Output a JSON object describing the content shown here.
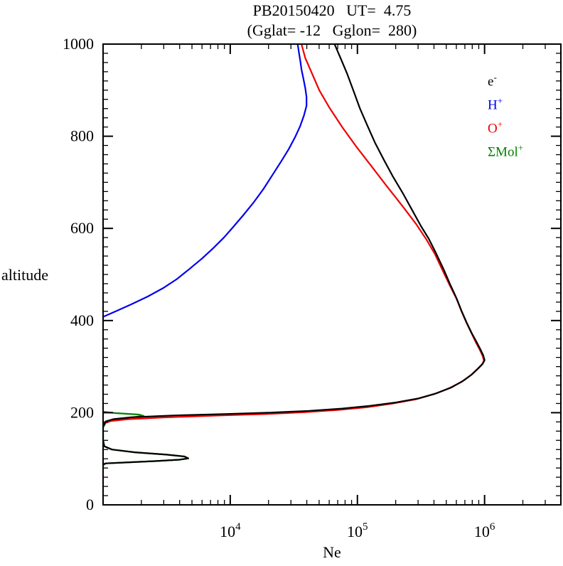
{
  "header": {
    "title": "PB20150420   UT=  4.75",
    "subtitle": "(Gglat= -12   Gglon=  280)"
  },
  "axes": {
    "x": {
      "label": "Ne",
      "scale": "log10",
      "log_min": 3.0,
      "log_max": 6.6,
      "major_ticks": [
        {
          "exp": "4"
        },
        {
          "exp": "5"
        },
        {
          "exp": "6"
        }
      ],
      "tick_label_base": "10"
    },
    "y": {
      "label": "altitude",
      "min": 0,
      "max": 1000,
      "minor_step": 20,
      "major_ticks": [
        {
          "value": 0,
          "label": "0"
        },
        {
          "value": 200,
          "label": "200"
        },
        {
          "value": 400,
          "label": "400"
        },
        {
          "value": 600,
          "label": "600"
        },
        {
          "value": 800,
          "label": "800"
        },
        {
          "value": 1000,
          "label": "1000"
        }
      ]
    }
  },
  "legend": {
    "items": [
      {
        "base": "e",
        "sup": "-",
        "color": "#000000",
        "series": "e-"
      },
      {
        "base": "H",
        "sup": "+",
        "color": "#0000ee",
        "series": "H+"
      },
      {
        "base": "O",
        "sup": "+",
        "color": "#ee0000",
        "series": "O+"
      },
      {
        "base": "ΣMol",
        "sup": "+",
        "color": "#008000",
        "series": "SigmaMol+"
      }
    ]
  },
  "chart_data": {
    "type": "line",
    "title": "PB20150420 UT= 4.75 (Gglat= -12 Gglon= 280)",
    "xlabel": "Ne",
    "ylabel": "altitude",
    "x_scale": "log10",
    "x_range_log10": [
      3.0,
      6.6
    ],
    "y_range": [
      0,
      1000
    ],
    "grid": false,
    "legend_position": "top-right-inside",
    "point_format": "[log10_Ne_per_cm3, altitude_km]",
    "series": [
      {
        "name": "SigmaMol+",
        "color": "#008000",
        "points": [
          [
            3.0,
            86
          ],
          [
            3.02,
            90
          ],
          [
            3.18,
            92
          ],
          [
            3.42,
            95
          ],
          [
            3.6,
            98
          ],
          [
            3.67,
            101
          ],
          [
            3.64,
            105
          ],
          [
            3.5,
            109
          ],
          [
            3.25,
            114
          ],
          [
            3.07,
            120
          ],
          [
            3.01,
            127
          ],
          [
            3.0,
            140
          ],
          [
            3.0,
            168
          ],
          [
            3.02,
            178
          ],
          [
            3.08,
            184
          ],
          [
            3.2,
            189
          ],
          [
            3.32,
            193
          ],
          [
            3.28,
            196
          ],
          [
            3.1,
            199
          ],
          [
            3.0,
            202
          ]
        ]
      },
      {
        "name": "H+",
        "color": "#0000ee",
        "points": [
          [
            3.0,
            408
          ],
          [
            3.1,
            420
          ],
          [
            3.22,
            435
          ],
          [
            3.35,
            452
          ],
          [
            3.47,
            470
          ],
          [
            3.58,
            490
          ],
          [
            3.68,
            512
          ],
          [
            3.78,
            535
          ],
          [
            3.87,
            558
          ],
          [
            3.95,
            580
          ],
          [
            4.02,
            602
          ],
          [
            4.1,
            628
          ],
          [
            4.18,
            655
          ],
          [
            4.26,
            685
          ],
          [
            4.33,
            715
          ],
          [
            4.4,
            745
          ],
          [
            4.46,
            772
          ],
          [
            4.51,
            798
          ],
          [
            4.55,
            822
          ],
          [
            4.58,
            845
          ],
          [
            4.6,
            866
          ],
          [
            4.6,
            885
          ],
          [
            4.59,
            905
          ],
          [
            4.575,
            925
          ],
          [
            4.56,
            945
          ],
          [
            4.55,
            965
          ],
          [
            4.54,
            982
          ],
          [
            4.53,
            1000
          ]
        ]
      },
      {
        "name": "O+",
        "color": "#ee0000",
        "points": [
          [
            3.0,
            176
          ],
          [
            3.06,
            182
          ],
          [
            3.2,
            186
          ],
          [
            3.5,
            190
          ],
          [
            3.92,
            194
          ],
          [
            4.28,
            197
          ],
          [
            4.58,
            201
          ],
          [
            4.85,
            206
          ],
          [
            5.08,
            212
          ],
          [
            5.28,
            220
          ],
          [
            5.46,
            229
          ],
          [
            5.6,
            240
          ],
          [
            5.72,
            253
          ],
          [
            5.82,
            267
          ],
          [
            5.89,
            281
          ],
          [
            5.945,
            295
          ],
          [
            5.98,
            305
          ],
          [
            5.995,
            313
          ],
          [
            5.985,
            323
          ],
          [
            5.965,
            335
          ],
          [
            5.935,
            351
          ],
          [
            5.9,
            371
          ],
          [
            5.86,
            394
          ],
          [
            5.82,
            419
          ],
          [
            5.78,
            447
          ],
          [
            5.725,
            477
          ],
          [
            5.67,
            509
          ],
          [
            5.61,
            544
          ],
          [
            5.54,
            577
          ],
          [
            5.46,
            610
          ],
          [
            5.35,
            650
          ],
          [
            5.23,
            692
          ],
          [
            5.11,
            735
          ],
          [
            4.99,
            778
          ],
          [
            4.88,
            820
          ],
          [
            4.78,
            862
          ],
          [
            4.7,
            900
          ],
          [
            4.64,
            938
          ],
          [
            4.59,
            970
          ],
          [
            4.56,
            1000
          ]
        ]
      },
      {
        "name": "e-",
        "color": "#000000",
        "points": [
          [
            3.0,
            88
          ],
          [
            3.02,
            90
          ],
          [
            3.18,
            92
          ],
          [
            3.42,
            95
          ],
          [
            3.6,
            98
          ],
          [
            3.67,
            101
          ],
          [
            3.64,
            105
          ],
          [
            3.5,
            109
          ],
          [
            3.25,
            114
          ],
          [
            3.07,
            120
          ],
          [
            3.01,
            127
          ],
          [
            3.0,
            140
          ],
          [
            3.0,
            170
          ],
          [
            3.02,
            181
          ],
          [
            3.08,
            186
          ],
          [
            3.22,
            190
          ],
          [
            3.55,
            194
          ],
          [
            3.95,
            197
          ],
          [
            4.3,
            200
          ],
          [
            4.62,
            204
          ],
          [
            4.88,
            209
          ],
          [
            5.1,
            215
          ],
          [
            5.3,
            222
          ],
          [
            5.48,
            231
          ],
          [
            5.62,
            242
          ],
          [
            5.74,
            255
          ],
          [
            5.83,
            269
          ],
          [
            5.9,
            283
          ],
          [
            5.95,
            296
          ],
          [
            5.985,
            306
          ],
          [
            6.0,
            314
          ],
          [
            5.99,
            324
          ],
          [
            5.97,
            336
          ],
          [
            5.94,
            352
          ],
          [
            5.9,
            372
          ],
          [
            5.86,
            395
          ],
          [
            5.82,
            420
          ],
          [
            5.78,
            448
          ],
          [
            5.73,
            478
          ],
          [
            5.68,
            510
          ],
          [
            5.62,
            545
          ],
          [
            5.56,
            578
          ],
          [
            5.5,
            605
          ],
          [
            5.43,
            640
          ],
          [
            5.36,
            675
          ],
          [
            5.28,
            712
          ],
          [
            5.21,
            748
          ],
          [
            5.14,
            785
          ],
          [
            5.08,
            822
          ],
          [
            5.02,
            860
          ],
          [
            4.97,
            898
          ],
          [
            4.92,
            935
          ],
          [
            4.87,
            968
          ],
          [
            4.82,
            1000
          ]
        ]
      }
    ]
  }
}
